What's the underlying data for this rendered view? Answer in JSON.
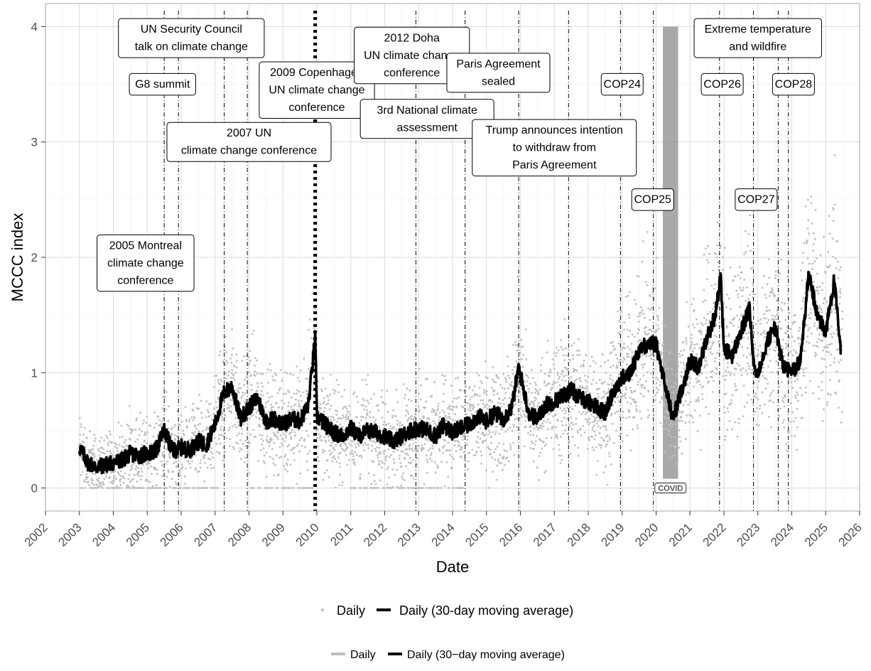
{
  "chart_data": {
    "type": "scatter",
    "xlabel": "Date",
    "ylabel": "MCCC index",
    "xlim": [
      2002.0,
      2026.0
    ],
    "ylim": [
      0,
      4
    ],
    "x_ticks": [
      "2002",
      "2003",
      "2004",
      "2005",
      "2006",
      "2007",
      "2008",
      "2009",
      "2010",
      "2011",
      "2012",
      "2013",
      "2014",
      "2015",
      "2016",
      "2017",
      "2018",
      "2019",
      "2020",
      "2021",
      "2022",
      "2023",
      "2024",
      "2025",
      "2026"
    ],
    "y_ticks": [
      "0",
      "1",
      "2",
      "3",
      "4"
    ],
    "grid": true,
    "series": [
      {
        "name": "Daily",
        "style": "points",
        "color": "#bebebe",
        "date_range": [
          "2003",
          "2025.5"
        ]
      },
      {
        "name": "Daily (30-day moving average)",
        "style": "line",
        "color": "#000000",
        "x": [
          2003.0,
          2003.25,
          2003.5,
          2003.75,
          2004.0,
          2004.25,
          2004.5,
          2004.75,
          2005.0,
          2005.25,
          2005.5,
          2005.75,
          2006.0,
          2006.25,
          2006.5,
          2006.75,
          2007.0,
          2007.25,
          2007.5,
          2007.75,
          2008.0,
          2008.25,
          2008.5,
          2008.75,
          2009.0,
          2009.25,
          2009.5,
          2009.75,
          2009.95,
          2010.0,
          2010.25,
          2010.5,
          2010.75,
          2011.0,
          2011.25,
          2011.5,
          2011.75,
          2012.0,
          2012.25,
          2012.5,
          2012.75,
          2013.0,
          2013.25,
          2013.5,
          2013.75,
          2014.0,
          2014.25,
          2014.5,
          2014.75,
          2015.0,
          2015.25,
          2015.5,
          2015.75,
          2015.95,
          2016.25,
          2016.5,
          2016.75,
          2017.0,
          2017.25,
          2017.5,
          2017.75,
          2018.0,
          2018.25,
          2018.5,
          2018.75,
          2019.0,
          2019.25,
          2019.5,
          2019.75,
          2020.0,
          2020.25,
          2020.5,
          2020.75,
          2021.0,
          2021.25,
          2021.5,
          2021.75,
          2021.9,
          2022.0,
          2022.25,
          2022.5,
          2022.75,
          2022.9,
          2023.0,
          2023.25,
          2023.5,
          2023.75,
          2024.0,
          2024.25,
          2024.5,
          2024.75,
          2025.0,
          2025.25,
          2025.45
        ],
        "y": [
          0.35,
          0.22,
          0.18,
          0.2,
          0.22,
          0.24,
          0.3,
          0.28,
          0.3,
          0.32,
          0.5,
          0.32,
          0.35,
          0.33,
          0.4,
          0.38,
          0.55,
          0.82,
          0.88,
          0.6,
          0.7,
          0.78,
          0.58,
          0.6,
          0.55,
          0.6,
          0.58,
          0.72,
          1.3,
          0.62,
          0.55,
          0.48,
          0.45,
          0.52,
          0.45,
          0.5,
          0.48,
          0.45,
          0.4,
          0.45,
          0.5,
          0.52,
          0.5,
          0.45,
          0.55,
          0.48,
          0.52,
          0.55,
          0.62,
          0.58,
          0.65,
          0.6,
          0.7,
          1.05,
          0.65,
          0.6,
          0.72,
          0.75,
          0.8,
          0.85,
          0.78,
          0.75,
          0.7,
          0.65,
          0.85,
          0.95,
          1.0,
          1.2,
          1.25,
          1.25,
          0.9,
          0.6,
          0.85,
          1.1,
          1.05,
          1.3,
          1.5,
          1.85,
          1.2,
          1.15,
          1.35,
          1.55,
          1.0,
          1.0,
          1.25,
          1.4,
          1.05,
          1.0,
          1.1,
          1.85,
          1.5,
          1.35,
          1.8,
          1.15
        ]
      }
    ],
    "vertical_lines": [
      {
        "x": 2005.5,
        "style": "dotdash"
      },
      {
        "x": 2005.92,
        "style": "dotdash"
      },
      {
        "x": 2007.27,
        "style": "dotdash"
      },
      {
        "x": 2007.95,
        "style": "dotdash"
      },
      {
        "x": 2009.95,
        "style": "dotted-thick"
      },
      {
        "x": 2012.92,
        "style": "dotdash"
      },
      {
        "x": 2014.37,
        "style": "dotdash"
      },
      {
        "x": 2015.95,
        "style": "dotdash"
      },
      {
        "x": 2017.42,
        "style": "dotdash"
      },
      {
        "x": 2018.95,
        "style": "dotdash"
      },
      {
        "x": 2019.92,
        "style": "dotdash"
      },
      {
        "x": 2021.87,
        "style": "dotdash"
      },
      {
        "x": 2022.87,
        "style": "dotdash"
      },
      {
        "x": 2023.6,
        "style": "dotdash"
      },
      {
        "x": 2023.9,
        "style": "dotdash"
      }
    ],
    "covid_band": {
      "x_start": 2020.2,
      "x_end": 2020.65,
      "y_max": 4,
      "label": "COVID"
    },
    "annotations": [
      {
        "lines": [
          "UN Security Council",
          "talk on climate change"
        ],
        "x": 2006.3,
        "y": 3.9
      },
      {
        "lines": [
          "G8 summit"
        ],
        "x": 2005.45,
        "y": 3.5
      },
      {
        "lines": [
          "2007 UN",
          "climate change conference"
        ],
        "x": 2008.0,
        "y": 3.0
      },
      {
        "lines": [
          "2009 Copenhagen",
          "UN climate change",
          "conference"
        ],
        "x": 2010.0,
        "y": 3.45
      },
      {
        "lines": [
          "2012 Doha",
          "UN climate change",
          "conference"
        ],
        "x": 2012.8,
        "y": 3.75
      },
      {
        "lines": [
          "Paris Agreement",
          "sealed"
        ],
        "x": 2015.35,
        "y": 3.6
      },
      {
        "lines": [
          "3rd National climate",
          "assessment"
        ],
        "x": 2013.25,
        "y": 3.2
      },
      {
        "lines": [
          "Trump announces intention",
          "to withdraw from",
          "Paris Agreement"
        ],
        "x": 2017.0,
        "y": 2.95
      },
      {
        "lines": [
          "COP24"
        ],
        "x": 2019.0,
        "y": 3.5
      },
      {
        "lines": [
          "COP25"
        ],
        "x": 2019.9,
        "y": 2.5
      },
      {
        "lines": [
          "COP26"
        ],
        "x": 2021.95,
        "y": 3.5
      },
      {
        "lines": [
          "COP27"
        ],
        "x": 2022.95,
        "y": 2.5
      },
      {
        "lines": [
          "COP28"
        ],
        "x": 2024.05,
        "y": 3.5
      },
      {
        "lines": [
          "Extreme temperature",
          "and wildfire"
        ],
        "x": 2023.0,
        "y": 3.9
      },
      {
        "lines": [
          "2005 Montreal",
          "climate change",
          "conference"
        ],
        "x": 2004.95,
        "y": 1.95
      }
    ],
    "legend": {
      "position": "bottom",
      "row1": [
        "Daily",
        "Daily (30-day moving average)"
      ],
      "row2": [
        "Daily",
        "Daily (30−day moving average)"
      ]
    }
  }
}
